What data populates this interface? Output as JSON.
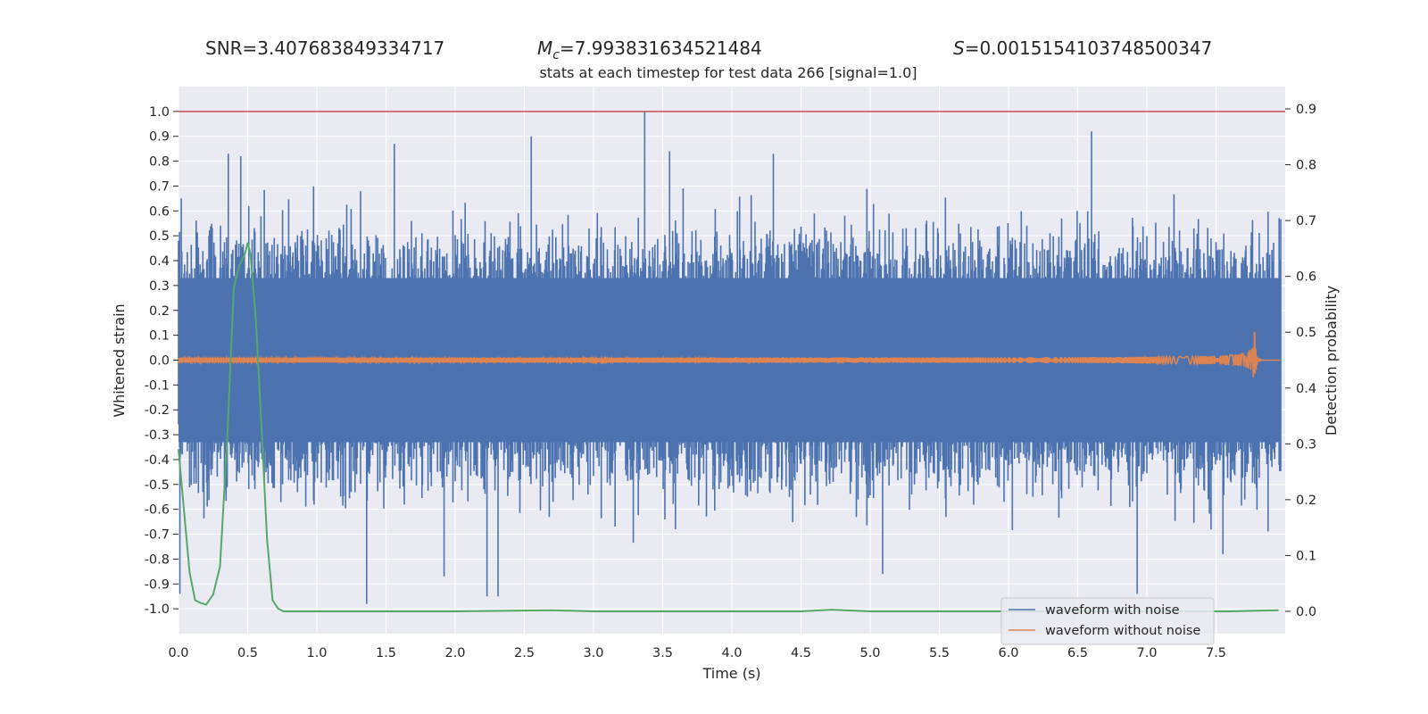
{
  "header": {
    "snr": "SNR=3.407683849334717",
    "mc_symbol": "M",
    "mc_sub": "c",
    "mc_value": "=7.993831634521484",
    "s_symbol": "S",
    "s_value": "=0.0015154103748500347"
  },
  "chart_data": {
    "type": "line",
    "title": "stats at each timestep for test data 266 [signal=1.0]",
    "xlabel": "Time (s)",
    "ylabel": "Whitened strain",
    "y2label": "Detection probability",
    "xlim": [
      0.0,
      8.0
    ],
    "ylim": [
      -1.1,
      1.1
    ],
    "y2lim": [
      -0.04,
      0.94
    ],
    "x_ticks": [
      "0.0",
      "0.5",
      "1.0",
      "1.5",
      "2.0",
      "2.5",
      "3.0",
      "3.5",
      "4.0",
      "4.5",
      "5.0",
      "5.5",
      "6.0",
      "6.5",
      "7.0",
      "7.5"
    ],
    "y_ticks": [
      "1.0",
      "0.9",
      "0.8",
      "0.7",
      "0.6",
      "0.5",
      "0.4",
      "0.3",
      "0.2",
      "0.1",
      "0.0",
      "-0.1",
      "-0.2",
      "-0.3",
      "-0.4",
      "-0.5",
      "-0.6",
      "-0.7",
      "-0.8",
      "-0.9",
      "-1.0"
    ],
    "y2_ticks": [
      "0.9",
      "0.8",
      "0.7",
      "0.6",
      "0.5",
      "0.4",
      "0.3",
      "0.2",
      "0.1",
      "0.0"
    ],
    "threshold": {
      "value": 1.0,
      "color": "#c44e52"
    },
    "legend": {
      "placement": "lower-right",
      "entries": [
        {
          "label": "waveform with noise",
          "color": "#4c72b0"
        },
        {
          "label": "waveform without noise",
          "color": "#dd8452"
        }
      ]
    },
    "series": [
      {
        "name": "waveform with noise",
        "axis": "left",
        "color": "#4c72b0",
        "style": "dense-noise",
        "envelope_typical": 0.45,
        "spikes": [
          {
            "x": 0.02,
            "y": 0.65
          },
          {
            "x": 0.36,
            "y": 0.83
          },
          {
            "x": 0.45,
            "y": 0.82
          },
          {
            "x": 1.56,
            "y": 0.87
          },
          {
            "x": 2.55,
            "y": 0.9
          },
          {
            "x": 3.37,
            "y": 1.0
          },
          {
            "x": 3.55,
            "y": 0.84
          },
          {
            "x": 4.3,
            "y": 0.83
          },
          {
            "x": 6.6,
            "y": 0.92
          },
          {
            "x": 1.36,
            "y": -0.98
          },
          {
            "x": 2.23,
            "y": -0.95
          },
          {
            "x": 2.31,
            "y": -0.95
          },
          {
            "x": 1.92,
            "y": -0.87
          },
          {
            "x": 5.09,
            "y": -0.86
          },
          {
            "x": 6.93,
            "y": -0.94
          },
          {
            "x": 0.01,
            "y": -0.94
          },
          {
            "x": 7.55,
            "y": -0.78
          }
        ]
      },
      {
        "name": "waveform without noise",
        "axis": "left",
        "color": "#dd8452",
        "style": "chirp",
        "amplitude_start": 0.008,
        "amplitude_peak": 0.11,
        "merger_time": 7.78
      },
      {
        "name": "",
        "axis": "right",
        "color": "#55a868",
        "x": [
          0.0,
          0.04,
          0.08,
          0.12,
          0.16,
          0.2,
          0.25,
          0.3,
          0.35,
          0.4,
          0.44,
          0.48,
          0.5,
          0.52,
          0.56,
          0.6,
          0.64,
          0.68,
          0.72,
          0.76,
          0.8,
          1.0,
          2.0,
          2.7,
          3.0,
          4.0,
          4.5,
          4.72,
          5.0,
          6.0,
          7.0,
          7.6,
          7.95
        ],
        "y": [
          0.29,
          0.18,
          0.07,
          0.02,
          0.015,
          0.012,
          0.03,
          0.08,
          0.3,
          0.58,
          0.62,
          0.64,
          0.66,
          0.64,
          0.52,
          0.33,
          0.13,
          0.02,
          0.005,
          0.0,
          0.0,
          0.0,
          0.0,
          0.002,
          0.0,
          0.0,
          0.0,
          0.003,
          0.0,
          0.0,
          0.0,
          0.0,
          0.002
        ]
      }
    ]
  }
}
